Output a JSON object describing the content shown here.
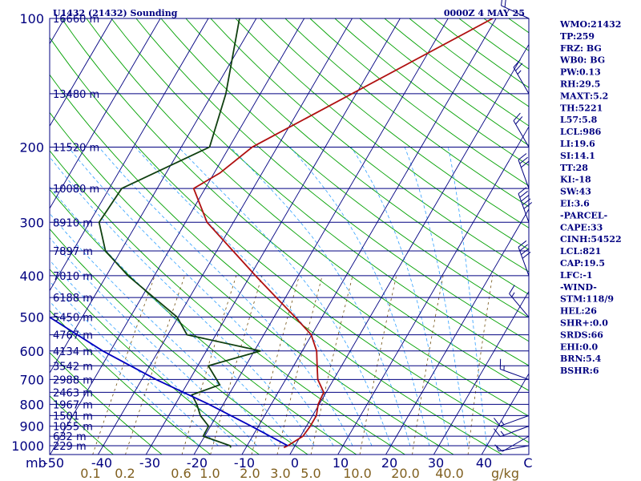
{
  "header": {
    "station": "U1432 (21432) Sounding",
    "time": "0000Z  4 MAY 25"
  },
  "pressure_unit": "mb",
  "mixing_unit": "g/kg",
  "chart_data": {
    "type": "line",
    "title": "U1432 (21432) Sounding",
    "xlabel": "",
    "ylabel": "mb",
    "xlim": [
      -50,
      50
    ],
    "ylim": [
      1000,
      100
    ],
    "y_scale": "log",
    "pressure_ticks": [
      "100",
      "200",
      "300",
      "400",
      "500",
      "600",
      "700",
      "800",
      "900",
      "1000"
    ],
    "temp_ticks": [
      "-50",
      "-40",
      "-30",
      "-20",
      "-10",
      "0",
      "10",
      "20",
      "30",
      "40",
      "C"
    ],
    "mixing_ratio_ticks": [
      "0.1",
      "0.2",
      "0.6",
      "1.0",
      "2.0",
      "3.0",
      "5.0",
      "10.0",
      "20.0",
      "40.0"
    ],
    "height_labels": [
      {
        "p": 100,
        "label": "16660 m"
      },
      {
        "p": 150,
        "label": "13480 m"
      },
      {
        "p": 200,
        "label": "11520 m"
      },
      {
        "p": 250,
        "label": "10080 m"
      },
      {
        "p": 300,
        "label": "8910 m"
      },
      {
        "p": 350,
        "label": "7897 m"
      },
      {
        "p": 400,
        "label": "7010 m"
      },
      {
        "p": 450,
        "label": "6188 m"
      },
      {
        "p": 500,
        "label": "5450 m"
      },
      {
        "p": 550,
        "label": "4767 m"
      },
      {
        "p": 600,
        "label": "4134 m"
      },
      {
        "p": 650,
        "label": "3542 m"
      },
      {
        "p": 700,
        "label": "2988 m"
      },
      {
        "p": 750,
        "label": "2463 m"
      },
      {
        "p": 800,
        "label": "1967 m"
      },
      {
        "p": 850,
        "label": "1501 m"
      },
      {
        "p": 900,
        "label": "1055 m"
      },
      {
        "p": 950,
        "label": "632 m"
      },
      {
        "p": 1000,
        "label": "229 m"
      }
    ],
    "series": [
      {
        "role": "temperature",
        "color": "#b01010",
        "points": [
          {
            "p": 1010,
            "t": -2.1
          },
          {
            "p": 1000,
            "t": -1.5
          },
          {
            "p": 950,
            "t": 0.5
          },
          {
            "p": 900,
            "t": 0.8
          },
          {
            "p": 850,
            "t": 0.8
          },
          {
            "p": 800,
            "t": -0.2
          },
          {
            "p": 750,
            "t": -0.5
          },
          {
            "p": 700,
            "t": -3.3
          },
          {
            "p": 650,
            "t": -5.1
          },
          {
            "p": 600,
            "t": -7.0
          },
          {
            "p": 550,
            "t": -10.1
          },
          {
            "p": 500,
            "t": -15.6
          },
          {
            "p": 450,
            "t": -21.9
          },
          {
            "p": 400,
            "t": -28.9
          },
          {
            "p": 350,
            "t": -36.6
          },
          {
            "p": 300,
            "t": -45.5
          },
          {
            "p": 250,
            "t": -52.4
          },
          {
            "p": 230,
            "t": -48.8
          },
          {
            "p": 200,
            "t": -45.2
          },
          {
            "p": 100,
            "t": -10.7
          }
        ]
      },
      {
        "role": "dewpoint",
        "color": "#104010",
        "points": [
          {
            "p": 1010,
            "t": -13.2
          },
          {
            "p": 1000,
            "t": -13.5
          },
          {
            "p": 950,
            "t": -20.3
          },
          {
            "p": 900,
            "t": -20.4
          },
          {
            "p": 850,
            "t": -23.4
          },
          {
            "p": 800,
            "t": -25.5
          },
          {
            "p": 760,
            "t": -27.7
          },
          {
            "p": 720,
            "t": -23.1
          },
          {
            "p": 650,
            "t": -27.8
          },
          {
            "p": 600,
            "t": -18.7
          },
          {
            "p": 550,
            "t": -36.0
          },
          {
            "p": 500,
            "t": -40.2
          },
          {
            "p": 400,
            "t": -55.5
          },
          {
            "p": 350,
            "t": -63.2
          },
          {
            "p": 300,
            "t": -68.0
          },
          {
            "p": 250,
            "t": -67.4
          },
          {
            "p": 200,
            "t": -54.1
          },
          {
            "p": 150,
            "t": -57.2
          },
          {
            "p": 100,
            "t": -63.5
          }
        ]
      },
      {
        "role": "parcel",
        "color": "#0000c0",
        "points": [
          {
            "p": 1000,
            "t": -1.5
          },
          {
            "p": 900,
            "t": -11.5
          },
          {
            "p": 800,
            "t": -23.0
          },
          {
            "p": 700,
            "t": -37.0
          },
          {
            "p": 600,
            "t": -51.6
          },
          {
            "p": 500,
            "t": -66.8
          },
          {
            "p": 400,
            "t": -84.0
          },
          {
            "p": 300,
            "t": -104.0
          },
          {
            "p": 200,
            "t": -129.0
          },
          {
            "p": 150,
            "t": -145.5
          },
          {
            "p": 100,
            "t": -168.0
          }
        ]
      }
    ],
    "wind_barbs": [
      {
        "p": 100,
        "dir": 295,
        "spd": 20
      },
      {
        "p": 150,
        "dir": 330,
        "spd": 25
      },
      {
        "p": 200,
        "dir": 330,
        "spd": 20
      },
      {
        "p": 250,
        "dir": 340,
        "spd": 30
      },
      {
        "p": 300,
        "dir": 340,
        "spd": 50
      },
      {
        "p": 400,
        "dir": 340,
        "spd": 40
      },
      {
        "p": 500,
        "dir": 320,
        "spd": 15
      },
      {
        "p": 700,
        "dir": 290,
        "spd": 15
      },
      {
        "p": 850,
        "dir": 250,
        "spd": 15
      },
      {
        "p": 900,
        "dir": 250,
        "spd": 15
      },
      {
        "p": 950,
        "dir": 240,
        "spd": 10
      },
      {
        "p": 1000,
        "dir": 260,
        "spd": 5
      }
    ]
  },
  "indices": [
    "WMO:21432",
    "TP:259",
    "FRZ: BG",
    "WB0: BG",
    "PW:0.13",
    "RH:29.5",
    "MAXT:5.2",
    "TH:5221",
    "L57:5.8",
    "LCL:986",
    "LI:19.6",
    "SI:14.1",
    "TT:28",
    "KI:-18",
    "SW:43",
    "EI:3.6",
    "-PARCEL-",
    "CAPE:33",
    "CINH:54522",
    "LCL:821",
    "CAP:19.5",
    "LFC:-1",
    "-WIND-",
    "STM:118/9",
    "HEL:26",
    "SHR+:0.0",
    "SRDS:66",
    "EHI:0.0",
    "BRN:5.4",
    "BSHR:6"
  ],
  "colors": {
    "frame": "#000080",
    "isobar": "#000080",
    "isotherm": "#000080",
    "dry_adiabat": "#00a000",
    "moist_adiabat": "#30a0ff",
    "mixing_ratio": "#705010",
    "temperature": "#b01010",
    "dewpoint": "#104010",
    "parcel": "#0000c0"
  }
}
